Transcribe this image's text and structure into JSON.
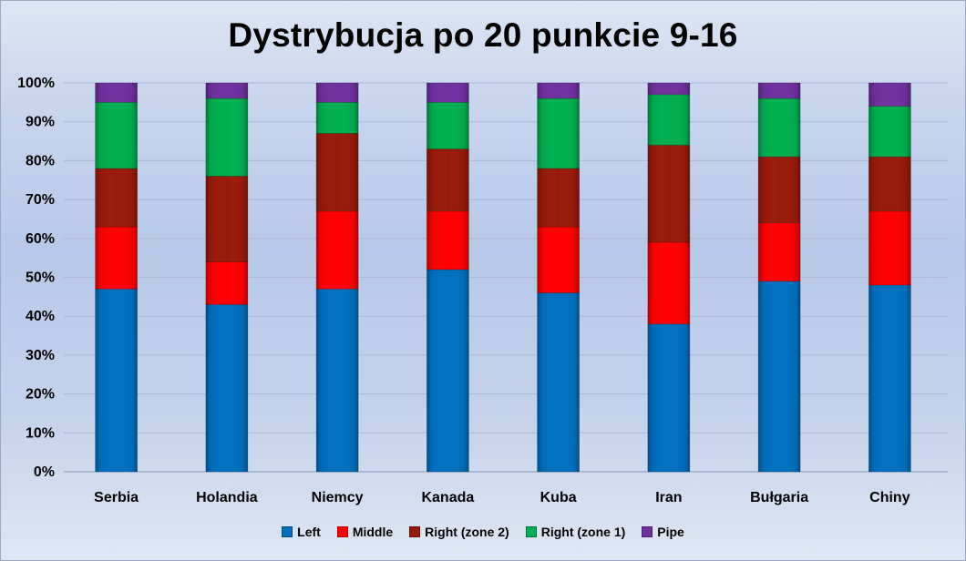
{
  "chart_data": {
    "type": "bar",
    "stacked": true,
    "percent": true,
    "title": "Dystrybucja po 20 punkcie 9-16",
    "xlabel": "",
    "ylabel": "",
    "ylim": [
      0,
      100
    ],
    "yticks": [
      "0%",
      "10%",
      "20%",
      "30%",
      "40%",
      "50%",
      "60%",
      "70%",
      "80%",
      "90%",
      "100%"
    ],
    "grid": true,
    "legend_position": "bottom",
    "categories": [
      "Serbia",
      "Holandia",
      "Niemcy",
      "Kanada",
      "Kuba",
      "Iran",
      "Bułgaria",
      "Chiny"
    ],
    "series": [
      {
        "name": "Left",
        "color": "#0070c0",
        "values": [
          47,
          43,
          47,
          52,
          46,
          38,
          49,
          48
        ]
      },
      {
        "name": "Middle",
        "color": "#ff0000",
        "values": [
          16,
          11,
          20,
          15,
          17,
          21,
          15,
          19
        ]
      },
      {
        "name": "Right (zone 2)",
        "color": "#9a1a0a",
        "values": [
          15,
          22,
          20,
          16,
          15,
          25,
          17,
          14
        ]
      },
      {
        "name": "Right (zone 1)",
        "color": "#00b050",
        "values": [
          17,
          20,
          8,
          12,
          18,
          13,
          15,
          13
        ]
      },
      {
        "name": "Pipe",
        "color": "#7030a0",
        "values": [
          5,
          4,
          5,
          5,
          4,
          3,
          4,
          6
        ]
      }
    ]
  }
}
